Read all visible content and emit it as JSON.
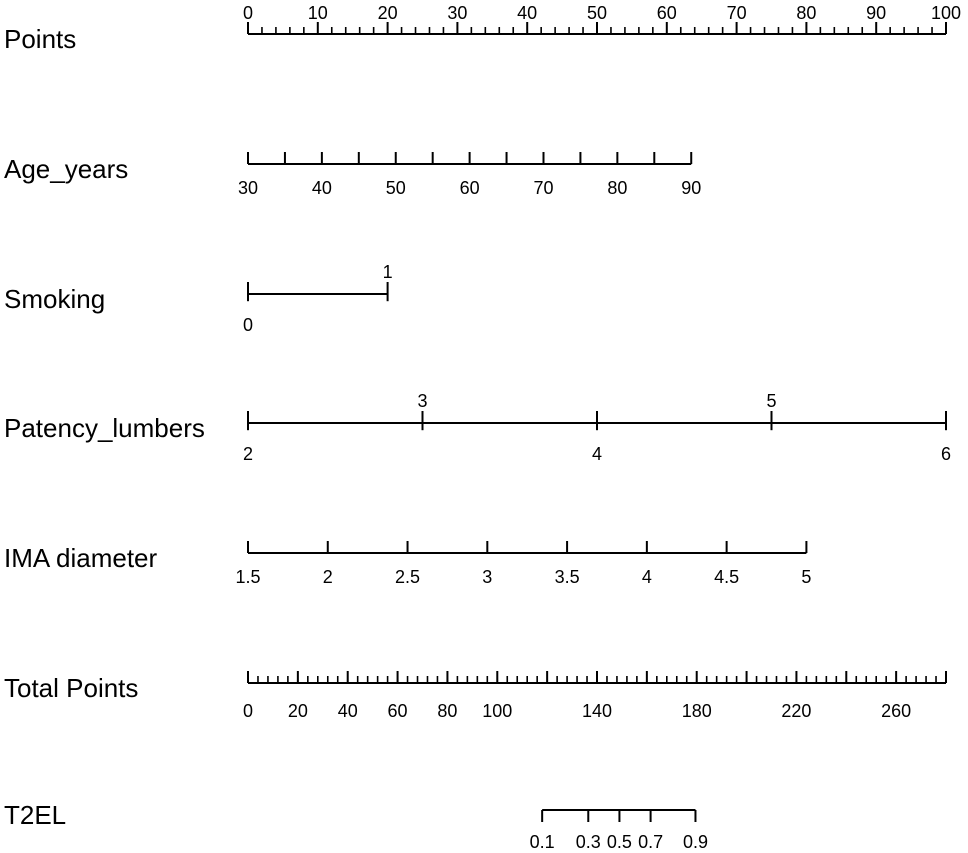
{
  "chart_data": {
    "type": "nomogram",
    "rows": [
      {
        "label": "Points",
        "min": 0,
        "max": 100,
        "ticks": [
          0,
          10,
          20,
          30,
          40,
          50,
          60,
          70,
          80,
          90,
          100
        ],
        "tick_labels": [
          "0",
          "10",
          "20",
          "30",
          "40",
          "50",
          "60",
          "70",
          "80",
          "90",
          "100"
        ],
        "minor_step": 2,
        "labels_above": true
      },
      {
        "label": "Age_years",
        "min": 30,
        "max": 90,
        "ticks": [
          30,
          35,
          40,
          45,
          50,
          55,
          60,
          65,
          70,
          75,
          80,
          85,
          90
        ],
        "tick_labels": [
          "30",
          "",
          "40",
          "",
          "50",
          "",
          "60",
          "",
          "70",
          "",
          "80",
          "",
          "90"
        ],
        "points_at_min": 0,
        "points_at_max": 63.5
      },
      {
        "label": "Smoking",
        "levels": [
          "0",
          "1"
        ],
        "points": [
          0,
          20
        ],
        "label_positions": [
          "below",
          "above"
        ]
      },
      {
        "label": "Patency_lumbers",
        "levels": [
          "2",
          "3",
          "4",
          "5",
          "6"
        ],
        "points": [
          0,
          25,
          50,
          75,
          100
        ],
        "label_positions": [
          "below",
          "above",
          "below",
          "above",
          "below"
        ]
      },
      {
        "label": "IMA diameter",
        "min": 1.5,
        "max": 5,
        "ticks": [
          1.5,
          2,
          2.5,
          3,
          3.5,
          4,
          4.5,
          5
        ],
        "tick_labels": [
          "1.5",
          "2",
          "2.5",
          "3",
          "3.5",
          "4",
          "4.5",
          "5"
        ],
        "points_at_min": 0,
        "points_at_max": 80
      },
      {
        "label": "Total Points",
        "min": 0,
        "max": 280,
        "ticks": [
          0,
          20,
          40,
          60,
          80,
          100,
          140,
          180,
          220,
          260
        ],
        "tick_labels": [
          "0",
          "20",
          "40",
          "60",
          "80",
          "100",
          "140",
          "180",
          "220",
          "260"
        ],
        "minor_step": 4
      },
      {
        "label": "T2EL",
        "probabilities": [
          0.1,
          0.3,
          0.5,
          0.7,
          0.9
        ],
        "tick_labels": [
          "0.1",
          "0.3",
          "0.5",
          "0.7",
          "0.9"
        ],
        "total_points": [
          118,
          136.5,
          149,
          161.5,
          179.5
        ]
      }
    ],
    "title": "",
    "xlabel": "",
    "ylabel": "",
    "grid": false,
    "color": "#000000"
  }
}
